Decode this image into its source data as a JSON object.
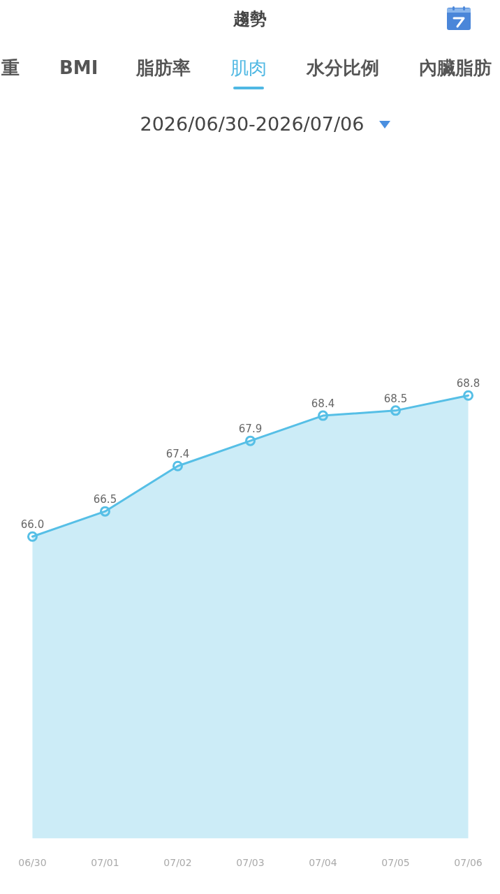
{
  "chart_data": {
    "type": "area",
    "title": "趨勢",
    "subtitle": "2026/06/30-2026/07/06",
    "annotations": [
      "重",
      "BMI",
      "脂肪率",
      "肌肉",
      "水分比例",
      "內臟脂肪"
    ],
    "categories": [
      "06/30",
      "07/01",
      "07/02",
      "07/03",
      "07/04",
      "07/05",
      "07/06"
    ],
    "series": [
      {
        "color": "#56bfe6",
        "values": [
          66.0,
          66.5,
          67.4,
          67.9,
          68.4,
          68.5,
          68.8
        ],
        "value_labels": [
          "66.0",
          "66.5",
          "67.4",
          "67.9",
          "68.4",
          "68.5",
          "68.8"
        ]
      }
    ],
    "marker": "circle",
    "tick_labels": "x"
  }
}
